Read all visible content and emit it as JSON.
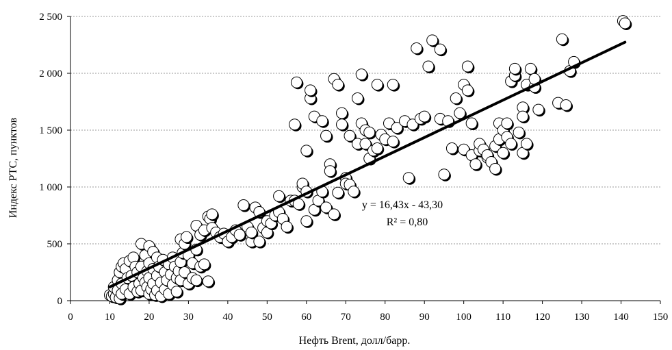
{
  "chart_data": {
    "type": "scatter",
    "title": "",
    "xlabel": "Нефть Brent, долл/барр.",
    "ylabel": "Индекс РТС, пунктов",
    "xlim": [
      0,
      150
    ],
    "ylim": [
      0,
      2500
    ],
    "x_ticks": [
      "0",
      "10",
      "20",
      "30",
      "40",
      "50",
      "60",
      "70",
      "80",
      "90",
      "100",
      "110",
      "120",
      "130",
      "140",
      "150"
    ],
    "y_ticks": [
      "0",
      "500",
      "1 000",
      "1 500",
      "2 000",
      "2 500"
    ],
    "grid": "horizontal-dotted",
    "marker_fill": "#ffffff",
    "marker_stroke": "#000000",
    "trendline": {
      "slope": 16.43,
      "intercept": -43.3,
      "x_range": [
        10,
        141
      ],
      "equation_label": "y = 16,43x - 43,30",
      "r2_label": "R² = 0,80"
    },
    "points": [
      [
        10,
        50
      ],
      [
        10.5,
        40
      ],
      [
        11,
        60
      ],
      [
        11,
        120
      ],
      [
        11.5,
        30
      ],
      [
        12,
        180
      ],
      [
        12,
        90
      ],
      [
        12.5,
        250
      ],
      [
        12.5,
        20
      ],
      [
        13,
        300
      ],
      [
        13,
        150
      ],
      [
        13,
        60
      ],
      [
        13.5,
        330
      ],
      [
        14,
        100
      ],
      [
        14,
        280
      ],
      [
        14.5,
        200
      ],
      [
        15,
        350
      ],
      [
        15,
        60
      ],
      [
        15.5,
        220
      ],
      [
        16,
        380
      ],
      [
        16,
        120
      ],
      [
        16.5,
        300
      ],
      [
        17,
        80
      ],
      [
        17,
        250
      ],
      [
        17.5,
        150
      ],
      [
        18,
        500
      ],
      [
        18,
        300
      ],
      [
        18,
        90
      ],
      [
        18.5,
        200
      ],
      [
        19,
        400
      ],
      [
        19,
        160
      ],
      [
        19.5,
        120
      ],
      [
        19.5,
        260
      ],
      [
        20,
        480
      ],
      [
        20,
        330
      ],
      [
        20,
        200
      ],
      [
        20,
        60
      ],
      [
        20.5,
        100
      ],
      [
        21,
        430
      ],
      [
        21,
        280
      ],
      [
        21,
        150
      ],
      [
        21.5,
        50
      ],
      [
        22,
        380
      ],
      [
        22,
        220
      ],
      [
        22,
        90
      ],
      [
        22.5,
        300
      ],
      [
        23,
        160
      ],
      [
        23,
        40
      ],
      [
        23.5,
        360
      ],
      [
        24,
        250
      ],
      [
        24,
        100
      ],
      [
        24.5,
        180
      ],
      [
        25,
        320
      ],
      [
        25,
        60
      ],
      [
        25.5,
        230
      ],
      [
        26,
        380
      ],
      [
        26,
        140
      ],
      [
        26.5,
        300
      ],
      [
        27,
        200
      ],
      [
        27,
        80
      ],
      [
        27.5,
        260
      ],
      [
        28,
        540
      ],
      [
        28,
        340
      ],
      [
        28,
        180
      ],
      [
        28.5,
        420
      ],
      [
        29,
        500
      ],
      [
        29,
        250
      ],
      [
        29.5,
        560
      ],
      [
        30,
        400
      ],
      [
        30,
        150
      ],
      [
        31,
        330
      ],
      [
        31,
        200
      ],
      [
        32,
        450
      ],
      [
        32,
        660
      ],
      [
        32,
        180
      ],
      [
        33,
        580
      ],
      [
        33,
        300
      ],
      [
        34,
        320
      ],
      [
        34,
        620
      ],
      [
        35,
        170
      ],
      [
        35,
        740
      ],
      [
        35.5,
        720
      ],
      [
        36,
        760
      ],
      [
        36,
        640
      ],
      [
        37,
        600
      ],
      [
        38,
        560
      ],
      [
        39,
        590
      ],
      [
        40,
        520
      ],
      [
        41,
        560
      ],
      [
        42,
        620
      ],
      [
        43,
        580
      ],
      [
        44,
        840
      ],
      [
        45,
        650
      ],
      [
        46,
        520
      ],
      [
        46,
        600
      ],
      [
        47,
        820
      ],
      [
        48,
        520
      ],
      [
        48,
        780
      ],
      [
        49,
        640
      ],
      [
        50,
        600
      ],
      [
        50,
        700
      ],
      [
        51,
        680
      ],
      [
        52,
        750
      ],
      [
        53,
        920
      ],
      [
        53,
        780
      ],
      [
        54,
        720
      ],
      [
        55,
        650
      ],
      [
        56,
        880
      ],
      [
        57,
        1550
      ],
      [
        57,
        880
      ],
      [
        57.5,
        1920
      ],
      [
        58,
        850
      ],
      [
        59,
        1000
      ],
      [
        59,
        1030
      ],
      [
        60,
        960
      ],
      [
        60,
        1320
      ],
      [
        60,
        700
      ],
      [
        61,
        1780
      ],
      [
        61,
        1850
      ],
      [
        62,
        1620
      ],
      [
        62,
        800
      ],
      [
        63,
        880
      ],
      [
        64,
        960
      ],
      [
        64,
        1580
      ],
      [
        65,
        1450
      ],
      [
        65,
        820
      ],
      [
        66,
        1200
      ],
      [
        66,
        1140
      ],
      [
        67,
        760
      ],
      [
        67,
        1950
      ],
      [
        68,
        1900
      ],
      [
        68,
        950
      ],
      [
        69,
        1650
      ],
      [
        69,
        1550
      ],
      [
        70,
        1080
      ],
      [
        70,
        1030
      ],
      [
        71,
        1020
      ],
      [
        71,
        1450
      ],
      [
        72,
        960
      ],
      [
        73,
        1780
      ],
      [
        73,
        1380
      ],
      [
        74,
        1990
      ],
      [
        74,
        1560
      ],
      [
        75,
        1500
      ],
      [
        75,
        1380
      ],
      [
        76,
        1250
      ],
      [
        76,
        1480
      ],
      [
        77,
        1320
      ],
      [
        78,
        1900
      ],
      [
        78,
        1340
      ],
      [
        79,
        1460
      ],
      [
        80,
        1420
      ],
      [
        81,
        1560
      ],
      [
        82,
        1900
      ],
      [
        82,
        1400
      ],
      [
        83,
        1520
      ],
      [
        85,
        1580
      ],
      [
        86,
        1080
      ],
      [
        87,
        1550
      ],
      [
        88,
        2220
      ],
      [
        89,
        1600
      ],
      [
        90,
        1620
      ],
      [
        91,
        2060
      ],
      [
        92,
        2290
      ],
      [
        94,
        2210
      ],
      [
        94,
        1600
      ],
      [
        95,
        1110
      ],
      [
        96,
        1580
      ],
      [
        97,
        1340
      ],
      [
        98,
        1780
      ],
      [
        99,
        1650
      ],
      [
        100,
        1330
      ],
      [
        100,
        1900
      ],
      [
        101,
        2060
      ],
      [
        101,
        1850
      ],
      [
        102,
        1560
      ],
      [
        102,
        1280
      ],
      [
        103,
        1200
      ],
      [
        104,
        1320
      ],
      [
        104,
        1380
      ],
      [
        105,
        1330
      ],
      [
        106,
        1260
      ],
      [
        106,
        1280
      ],
      [
        107,
        1220
      ],
      [
        108,
        1360
      ],
      [
        108,
        1160
      ],
      [
        109,
        1420
      ],
      [
        109,
        1560
      ],
      [
        110,
        1300
      ],
      [
        110,
        1500
      ],
      [
        111,
        1560
      ],
      [
        111,
        1440
      ],
      [
        112,
        1380
      ],
      [
        112,
        1930
      ],
      [
        113,
        1980
      ],
      [
        113,
        2040
      ],
      [
        114,
        1480
      ],
      [
        115,
        1700
      ],
      [
        115,
        1620
      ],
      [
        115,
        1300
      ],
      [
        116,
        1900
      ],
      [
        116,
        1380
      ],
      [
        117,
        2040
      ],
      [
        118,
        1880
      ],
      [
        118,
        1950
      ],
      [
        119,
        1680
      ],
      [
        124,
        1740
      ],
      [
        125,
        2300
      ],
      [
        126,
        1720
      ],
      [
        127,
        2020
      ],
      [
        128,
        2100
      ],
      [
        140.5,
        2460
      ],
      [
        141,
        2440
      ]
    ]
  }
}
